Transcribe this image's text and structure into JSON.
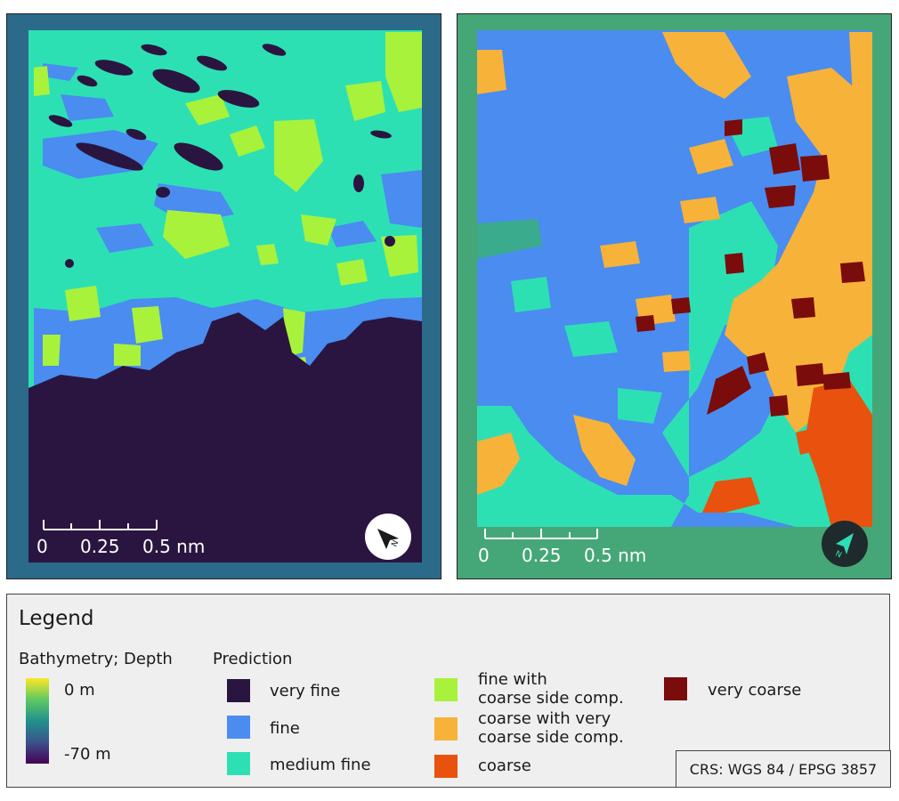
{
  "maps": {
    "left": {
      "name": "Bathymetry",
      "scalebar": {
        "ticks": [
          "0",
          "0.25",
          "0.5 nm"
        ]
      },
      "north_arrow_icon": "north-arrow-icon"
    },
    "right": {
      "name": "Prediction",
      "scalebar": {
        "ticks": [
          "0",
          "0.25",
          "0.5 nm"
        ]
      },
      "north_arrow_icon": "north-arrow-icon"
    }
  },
  "legend": {
    "title": "Legend",
    "bathymetry": {
      "title": "Bathymetry; Depth",
      "max_label": "0 m",
      "min_label": "-70 m",
      "gradient": [
        "#fde725",
        "#5ec962",
        "#21918c",
        "#3b528b",
        "#440154"
      ]
    },
    "prediction": {
      "title": "Prediction",
      "classes": [
        {
          "label": "very fine",
          "color": "#2a1540"
        },
        {
          "label": "fine",
          "color": "#4a8cf0"
        },
        {
          "label": "medium fine",
          "color": "#2de0b4"
        },
        {
          "label": "fine with\ncoarse side comp.",
          "color": "#a8f23c"
        },
        {
          "label": "coarse with very\ncoarse side comp.",
          "color": "#f7b23a"
        },
        {
          "label": "coarse",
          "color": "#e8520e"
        },
        {
          "label": "very coarse",
          "color": "#7a0c0c"
        }
      ]
    },
    "crs": "CRS: WGS 84 / EPSG 3857"
  }
}
